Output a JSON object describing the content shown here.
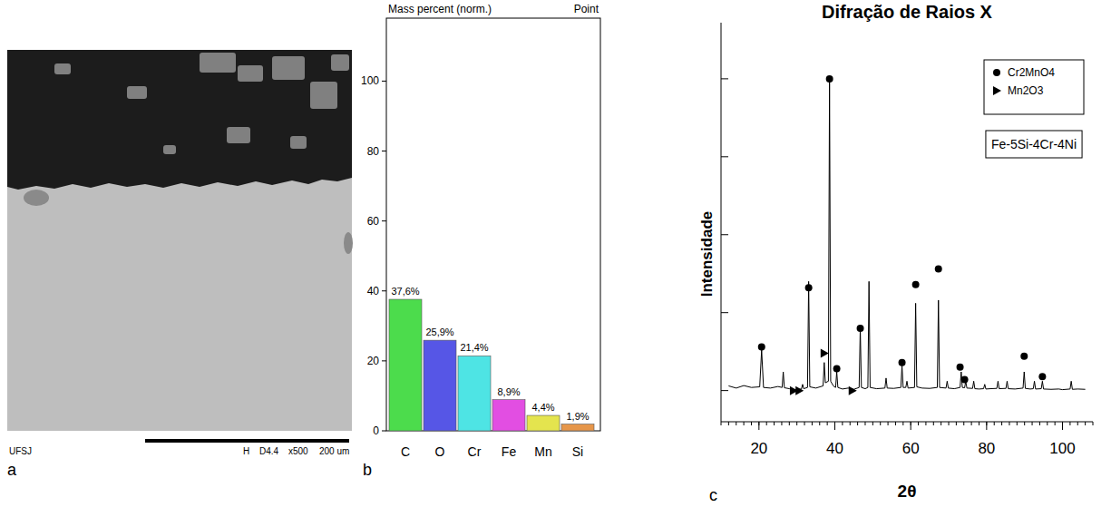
{
  "micrograph": {
    "panel_label": "a",
    "footer_left": "UFSJ",
    "footer_right": [
      "H",
      "D4.4",
      "x500",
      "200 um"
    ]
  },
  "chart_data": [
    {
      "type": "bar",
      "panel_label": "b",
      "title": "Mass percent (norm.)",
      "subtitle": "Point",
      "categories": [
        "C",
        "O",
        "Cr",
        "Fe",
        "Mn",
        "Si"
      ],
      "values": [
        37.6,
        25.9,
        21.4,
        8.9,
        4.4,
        1.9
      ],
      "value_labels": [
        "37,6%",
        "25,9%",
        "21,4%",
        "8,9%",
        "4,4%",
        "1,9%"
      ],
      "colors": [
        "#4cdc4c",
        "#5656e6",
        "#4ee4e4",
        "#e24ee2",
        "#e4e44e",
        "#e6964a"
      ],
      "ylim": [
        0,
        118
      ],
      "yticks": [
        0,
        20,
        40,
        60,
        80,
        100
      ],
      "data_labels": true,
      "grid": false
    },
    {
      "type": "line",
      "panel_label": "c",
      "title": "Difração de Raios X",
      "x_label": "2θ",
      "y_label": "Intensidade",
      "color": "#000000",
      "x": [
        12,
        14,
        16,
        18,
        20.2,
        20.7,
        21.2,
        23,
        25,
        26.1,
        26.4,
        26.7,
        28,
        29.5,
        31.2,
        31.5,
        31.8,
        32.8,
        33.1,
        33.4,
        35,
        36.9,
        37.2,
        37.5,
        38.3,
        38.6,
        38.9,
        39.6,
        40.2,
        40.5,
        40.8,
        42,
        43.5,
        45,
        46.4,
        46.7,
        47.0,
        48,
        48.7,
        49.0,
        49.3,
        51,
        53.2,
        53.5,
        53.8,
        55.5,
        57.4,
        57.7,
        58.0,
        58.7,
        59.0,
        59.3,
        61.0,
        61.3,
        61.6,
        63,
        65,
        67.0,
        67.3,
        67.6,
        69.3,
        69.6,
        69.9,
        71.5,
        73.0,
        73.3,
        73.6,
        74.2,
        74.5,
        74.8,
        76.3,
        76.6,
        76.9,
        78,
        79.2,
        79.5,
        79.8,
        81,
        82.7,
        83.0,
        83.3,
        85.1,
        85.4,
        85.7,
        87.5,
        89.6,
        89.9,
        90.2,
        91.5,
        92.3,
        92.6,
        92.9,
        94.4,
        94.7,
        95.0,
        97,
        99,
        100,
        102.0,
        102.3,
        102.6,
        104,
        106
      ],
      "values": [
        1.5,
        0.8,
        1.6,
        1.0,
        1.2,
        13,
        1.0,
        0.8,
        1.3,
        1.0,
        6,
        0.9,
        0.6,
        0.2,
        0.5,
        2,
        0.6,
        1.0,
        35,
        1.2,
        0.8,
        1.5,
        9,
        2.5,
        3,
        100,
        3,
        1.5,
        1,
        6,
        1,
        0.5,
        0.8,
        0.4,
        1,
        20,
        1,
        0.6,
        1,
        35,
        1,
        0.6,
        0.8,
        4,
        0.8,
        0.7,
        1,
        8,
        1,
        1,
        3,
        0.8,
        1,
        28,
        1.2,
        0.8,
        0.7,
        1,
        29,
        1,
        0.8,
        3,
        0.8,
        0.6,
        1,
        6,
        1,
        0.9,
        3,
        0.8,
        0.7,
        3,
        0.6,
        0.5,
        0.6,
        2,
        0.5,
        0.6,
        0.7,
        3,
        0.6,
        0.7,
        3,
        0.6,
        0.5,
        0.8,
        6,
        0.7,
        0.5,
        0.6,
        3,
        0.5,
        0.6,
        3,
        0.5,
        0.4,
        0.5,
        0.3,
        0.5,
        3,
        0.4,
        0.5,
        0.4
      ],
      "series": [
        {
          "name": "Cr2MnO4",
          "type": "scatter",
          "marker": "circle",
          "color": "#000000",
          "x": [
            20.7,
            33.1,
            38.6,
            40.5,
            46.7,
            57.7,
            61.3,
            67.3,
            73.0,
            74.2,
            89.9,
            94.7
          ],
          "values": [
            14,
            33,
            100,
            7,
            20,
            9,
            34,
            39,
            7.5,
            3.5,
            11,
            4.5
          ]
        },
        {
          "name": "Mn2O3",
          "type": "scatter",
          "marker": "triangle",
          "color": "#000000",
          "x": [
            29.1,
            30.6,
            37.2,
            44.6
          ],
          "values": [
            0,
            0,
            12,
            0
          ]
        }
      ],
      "annotation": "Fe-5Si-4Cr-4Ni",
      "xlim": [
        10,
        108
      ],
      "xticks": [
        20,
        40,
        60,
        80,
        100
      ],
      "ylim": [
        -10,
        118
      ],
      "yticks": [
        0,
        25,
        50,
        75,
        100
      ],
      "tick_labels": "x",
      "legend": "upper right",
      "grid": false
    }
  ]
}
